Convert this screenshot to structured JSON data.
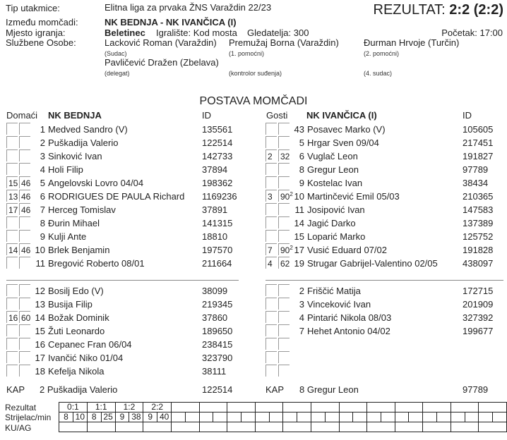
{
  "header": {
    "match_type_label": "Tip utakmice:",
    "match_type": "Elitna liga za prvaka ŽNS Varaždin 22/23",
    "result_label": "REZULTAT:",
    "result": "2:2 (2:2)",
    "teams_label": "Između momčadi:",
    "teams": "NK BEDNJA - NK IVANČICA (I)",
    "venue_label": "Mjesto igranja:",
    "venue": "Beletinec",
    "pitch": "Igralište: Kod mosta",
    "spectators": "Gledatelja: 300",
    "kickoff": "Početak: 17:00",
    "officials_label": "Službene Osobe:",
    "officials": [
      {
        "name": "Lacković Roman (Varaždin)",
        "role": "(Sudac)"
      },
      {
        "name": "Premužaj Borna (Varaždin)",
        "role": "(1. pomoćni)"
      },
      {
        "name": "Đurman Hrvoje (Turčin)",
        "role": "(2. pomoćni)"
      },
      {
        "name": "Pavličević Dražen (Zbelava)",
        "role": "(delegat)"
      },
      {
        "name": "",
        "role": "(kontrolor suđenja)"
      },
      {
        "name": "",
        "role": "(4. sudac)"
      }
    ]
  },
  "lineup_title": "POSTAVA MOMČADI",
  "home": {
    "side_label": "Domaći",
    "team": "NK BEDNJA",
    "id_label": "ID",
    "starters": [
      [
        "",
        "",
        "1",
        "Medved Sandro   (V)",
        "135561"
      ],
      [
        "",
        "",
        "2",
        "Puškadija Valerio",
        "122514"
      ],
      [
        "",
        "",
        "3",
        "Sinković Ivan",
        "142733"
      ],
      [
        "",
        "",
        "4",
        "Holi Filip",
        "37894"
      ],
      [
        "15",
        "46",
        "5",
        "Angelovski Lovro  04/04",
        "198362"
      ],
      [
        "13",
        "46",
        "6",
        "RODRIGUES DE PAULA Richard",
        "1169236"
      ],
      [
        "17",
        "46",
        "7",
        "Herceg Tomislav",
        "37891"
      ],
      [
        "",
        "",
        "8",
        "Đurin Mihael",
        "141315"
      ],
      [
        "",
        "",
        "9",
        "Kulji Ante",
        "18810"
      ],
      [
        "14",
        "46",
        "10",
        "Brlek Benjamin",
        "197570"
      ],
      [
        "",
        "",
        "11",
        "Bregović Roberto  08/01",
        "211664"
      ]
    ],
    "bench": [
      [
        "",
        "",
        "12",
        "Bosilj Edo   (V)",
        "38099"
      ],
      [
        "",
        "",
        "13",
        "Busija Filip",
        "219345"
      ],
      [
        "16",
        "60",
        "14",
        "Božak Dominik",
        "37860"
      ],
      [
        "",
        "",
        "15",
        "Žuti Leonardo",
        "189650"
      ],
      [
        "",
        "",
        "16",
        "Cepanec Fran  06/04",
        "238415"
      ],
      [
        "",
        "",
        "17",
        "Ivančić Niko  01/04",
        "323790"
      ],
      [
        "",
        "",
        "18",
        "Kefelja Nikola",
        "38111"
      ]
    ],
    "captain_label": "KAP",
    "captain": "2 Puškadija Valerio",
    "captain_id": "122514"
  },
  "away": {
    "side_label": "Gosti",
    "team": "NK IVANČICA (I)",
    "id_label": "ID",
    "starters": [
      [
        "",
        "",
        "43",
        "Posavec Marko   (V)",
        "105605"
      ],
      [
        "",
        "",
        "5",
        "Hrgar Sven  09/04",
        "217451"
      ],
      [
        "2",
        "32",
        "6",
        "Vuglač Leon",
        "191827"
      ],
      [
        "",
        "",
        "8",
        "Gregur Leon",
        "97789"
      ],
      [
        "",
        "",
        "9",
        "Kostelac Ivan",
        "38434"
      ],
      [
        "3",
        "90²",
        "10",
        "Martinčević Emil  05/03",
        "210365"
      ],
      [
        "",
        "",
        "11",
        "Josipović Ivan",
        "147583"
      ],
      [
        "",
        "",
        "14",
        "Jagić Darko",
        "137389"
      ],
      [
        "",
        "",
        "15",
        "Loparić Marko",
        "125752"
      ],
      [
        "7",
        "90²",
        "17",
        "Vusić Eduard  07/02",
        "191828"
      ],
      [
        "4",
        "62",
        "19",
        "Strugar Gabrijel-Valentino  02/05",
        "438097"
      ]
    ],
    "bench": [
      [
        "",
        "",
        "2",
        "Friščić Matija",
        "172715"
      ],
      [
        "",
        "",
        "3",
        "Vinceković Ivan",
        "201909"
      ],
      [
        "",
        "",
        "4",
        "Pintarić Nikola 08/03",
        "327392"
      ],
      [
        "",
        "",
        "7",
        "Hehet Antonio 04/02",
        "199677"
      ],
      [
        "",
        "",
        "",
        "",
        ""
      ],
      [
        "",
        "",
        "",
        "",
        ""
      ],
      [
        "",
        "",
        "",
        "",
        ""
      ]
    ],
    "captain_label": "KAP",
    "captain": "8 Gregur Leon",
    "captain_id": "97789"
  },
  "goals": {
    "row_labels": [
      "Rezultat",
      "Strijelac/min",
      "KU/AG"
    ],
    "scores": [
      "0:1",
      "1:1",
      "1:2",
      "2:2"
    ],
    "scorers": [
      [
        "8",
        "10"
      ],
      [
        "8",
        "25"
      ],
      [
        "9",
        "38"
      ],
      [
        "9",
        "40"
      ]
    ]
  }
}
